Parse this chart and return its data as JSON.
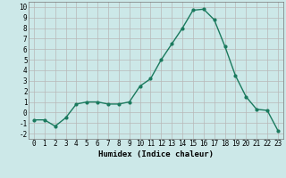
{
  "x": [
    0,
    1,
    2,
    3,
    4,
    5,
    6,
    7,
    8,
    9,
    10,
    11,
    12,
    13,
    14,
    15,
    16,
    17,
    18,
    19,
    20,
    21,
    22,
    23
  ],
  "y": [
    -0.7,
    -0.7,
    -1.3,
    -0.5,
    0.8,
    1.0,
    1.0,
    0.8,
    0.8,
    1.0,
    2.5,
    3.2,
    5.0,
    6.5,
    8.0,
    9.7,
    9.8,
    8.8,
    6.3,
    3.5,
    1.5,
    0.3,
    0.2,
    -1.7
  ],
  "line_color": "#1a7a5e",
  "marker": "o",
  "marker_size": 2.0,
  "bg_color": "#cce8e8",
  "grid_color": "#b8b8b8",
  "xlabel": "Humidex (Indice chaleur)",
  "xlim": [
    -0.5,
    23.5
  ],
  "ylim": [
    -2.5,
    10.5
  ],
  "yticks": [
    -2,
    -1,
    0,
    1,
    2,
    3,
    4,
    5,
    6,
    7,
    8,
    9,
    10
  ],
  "xticks": [
    0,
    1,
    2,
    3,
    4,
    5,
    6,
    7,
    8,
    9,
    10,
    11,
    12,
    13,
    14,
    15,
    16,
    17,
    18,
    19,
    20,
    21,
    22,
    23
  ],
  "xlabel_fontsize": 6.5,
  "tick_fontsize": 5.5,
  "line_width": 1.0
}
